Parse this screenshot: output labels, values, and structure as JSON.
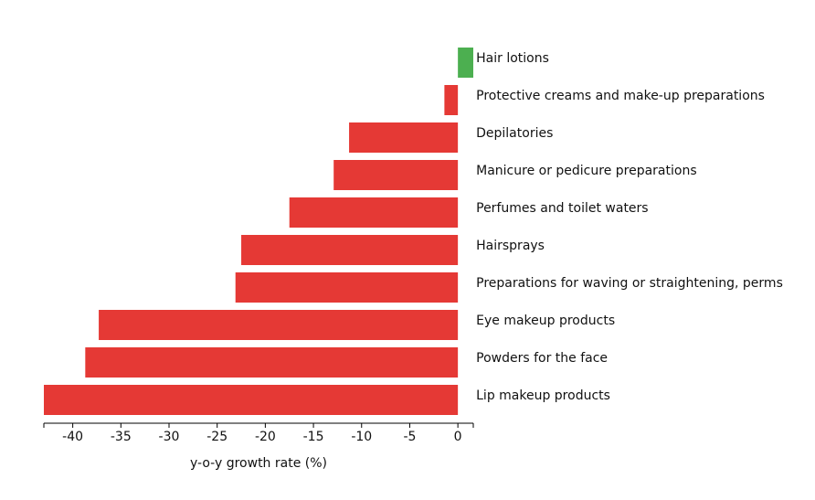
{
  "chart_data": {
    "type": "bar",
    "orientation": "horizontal",
    "title": "",
    "xlabel": "y-o-y growth rate (%)",
    "ylabel": "",
    "xlim": [
      -43,
      1.6
    ],
    "xticks": [
      -40,
      -35,
      -30,
      -25,
      -20,
      -15,
      -10,
      -5,
      0
    ],
    "xtick_labels": [
      "-40",
      "-35",
      "-30",
      "-25",
      "-20",
      "-15",
      "-10",
      "-5",
      "0"
    ],
    "grid": false,
    "legend": "none",
    "category_labels_position": "right of zero line",
    "colors": {
      "positive": "#4caf50",
      "negative": "#e53935"
    },
    "categories": [
      "Hair lotions",
      "Protective creams and make-up preparations",
      "Depilatories",
      "Manicure or pedicure preparations",
      "Perfumes and toilet waters",
      "Hairsprays",
      "Preparations for waving or straightening, perms",
      "Eye makeup products",
      "Powders for the face",
      "Lip makeup products"
    ],
    "values": [
      1.6,
      -1.4,
      -11.3,
      -12.9,
      -17.5,
      -22.5,
      -23.1,
      -37.3,
      -38.7,
      -43.0
    ]
  }
}
